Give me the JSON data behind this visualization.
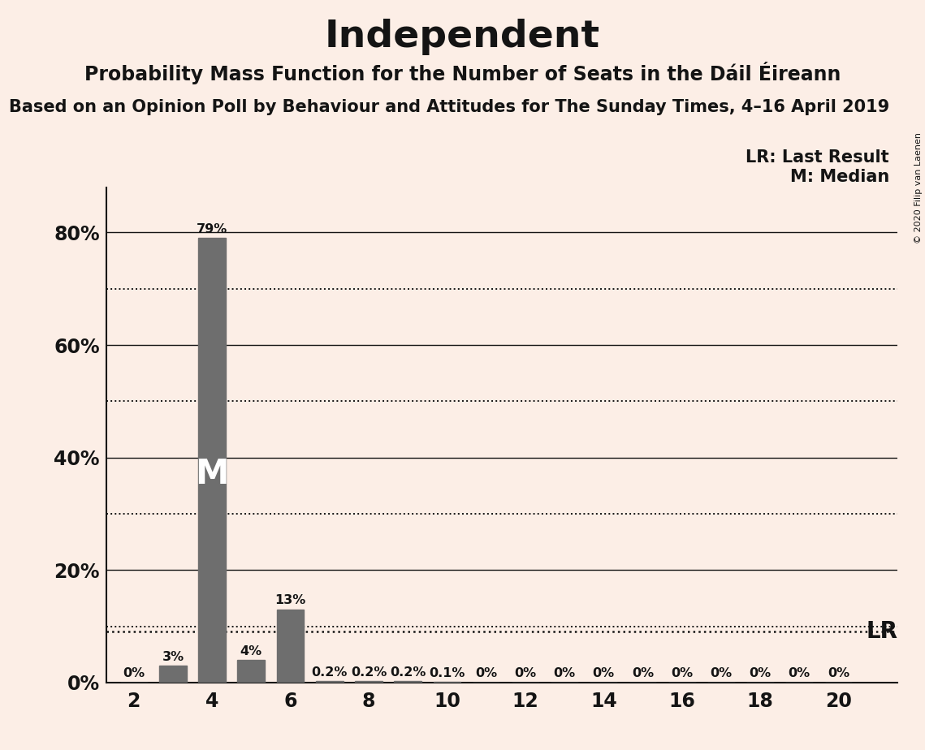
{
  "title": "Independent",
  "subtitle": "Probability Mass Function for the Number of Seats in the Dáil Éireann",
  "source": "Based on an Opinion Poll by Behaviour and Attitudes for The Sunday Times, 4–16 April 2019",
  "copyright": "© 2020 Filip van Laenen",
  "background_color": "#fceee6",
  "bar_color": "#6e6e6e",
  "seats": [
    2,
    3,
    4,
    5,
    6,
    7,
    8,
    9,
    10,
    11,
    12,
    13,
    14,
    15,
    16,
    17,
    18,
    19,
    20
  ],
  "probabilities": [
    0.0,
    3.0,
    79.0,
    4.0,
    13.0,
    0.2,
    0.2,
    0.2,
    0.1,
    0.0,
    0.0,
    0.0,
    0.0,
    0.0,
    0.0,
    0.0,
    0.0,
    0.0,
    0.0
  ],
  "labels": [
    "0%",
    "3%",
    "79%",
    "4%",
    "13%",
    "0.2%",
    "0.2%",
    "0.2%",
    "0.1%",
    "0%",
    "0%",
    "0%",
    "0%",
    "0%",
    "0%",
    "0%",
    "0%",
    "0%",
    "0%"
  ],
  "median_seat": 4,
  "lr_value": 9.0,
  "ylim_max": 88,
  "yticks": [
    0,
    20,
    40,
    60,
    80
  ],
  "ytick_labels": [
    "0%",
    "20%",
    "40%",
    "60%",
    "80%"
  ],
  "dotted_lines": [
    10,
    30,
    50,
    70
  ],
  "solid_lines": [
    20,
    40,
    60,
    80
  ],
  "xticks": [
    2,
    4,
    6,
    8,
    10,
    12,
    14,
    16,
    18,
    20
  ],
  "title_fontsize": 34,
  "subtitle_fontsize": 17,
  "source_fontsize": 15,
  "label_fontsize": 11.5,
  "axis_fontsize": 17,
  "legend_fontsize": 15,
  "text_color": "#141414",
  "lr_label_fontsize": 20,
  "m_fontsize": 30
}
